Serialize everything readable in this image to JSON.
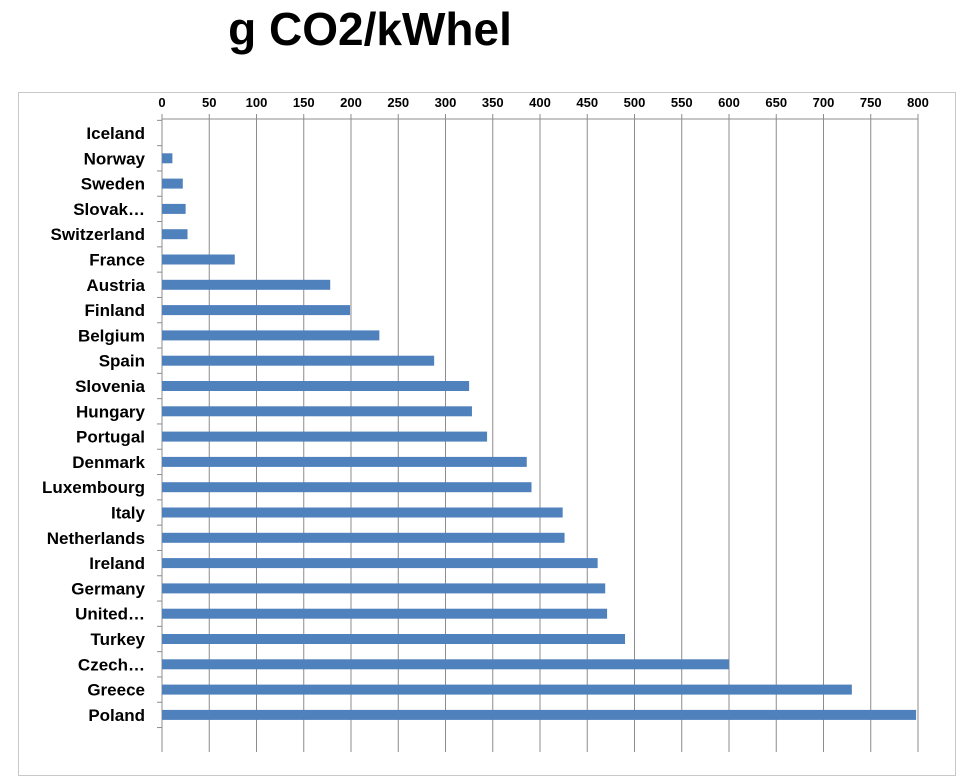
{
  "chart_data": {
    "type": "bar",
    "orientation": "horizontal",
    "title": "g CO2/kWhel",
    "xlabel": "",
    "ylabel": "",
    "xlim": [
      0,
      800
    ],
    "x_ticks": [
      0,
      50,
      100,
      150,
      200,
      250,
      300,
      350,
      400,
      450,
      500,
      550,
      600,
      650,
      700,
      750,
      800
    ],
    "x_axis_position": "top",
    "grid": true,
    "legend": "none",
    "bar_color": "#4f81bd",
    "categories": [
      "Iceland",
      "Norway",
      "Sweden",
      "Slovak…",
      "Switzerland",
      "France",
      "Austria",
      "Finland",
      "Belgium",
      "Spain",
      "Slovenia",
      "Hungary",
      "Portugal",
      "Denmark",
      "Luxembourg",
      "Italy",
      "Netherlands",
      "Ireland",
      "Germany",
      "United…",
      "Turkey",
      "Czech…",
      "Greece",
      "Poland"
    ],
    "values": [
      0,
      11,
      22,
      25,
      27,
      77,
      178,
      199,
      230,
      288,
      325,
      328,
      344,
      386,
      391,
      424,
      426,
      461,
      469,
      471,
      490,
      600,
      730,
      798
    ]
  }
}
